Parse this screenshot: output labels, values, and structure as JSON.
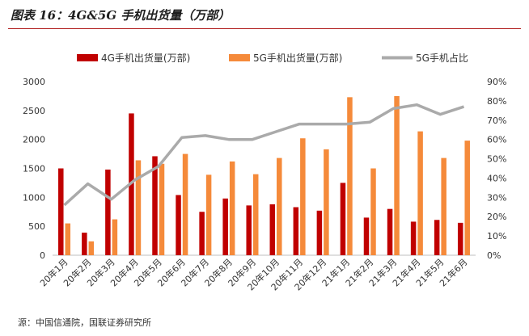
{
  "title": "图表 16：4G&5G 手机出货量（万部）",
  "source": "源：中国信通院，国联证券研究所",
  "colors": {
    "series_4g": "#c00000",
    "series_5g": "#f58a3a",
    "series_ratio": "#aaaaaa",
    "title_rule": "#b01c1c"
  },
  "chart_data": {
    "type": "bar",
    "categories": [
      "20年1月",
      "20年2月",
      "20年3月",
      "20年4月",
      "20年5月",
      "20年6月",
      "20年7月",
      "20年8月",
      "20年9月",
      "20年10月",
      "20年11月",
      "20年12月",
      "21年1月",
      "21年2月",
      "21年3月",
      "21年4月",
      "21年5月",
      "21年6月"
    ],
    "series": [
      {
        "name": "4G手机出货量(万部)",
        "type": "bar",
        "axis": "left",
        "values": [
          1500,
          390,
          1480,
          2450,
          1710,
          1040,
          750,
          980,
          860,
          880,
          830,
          770,
          1250,
          650,
          800,
          580,
          610,
          560
        ]
      },
      {
        "name": "5G手机出货量(万部)",
        "type": "bar",
        "axis": "left",
        "values": [
          550,
          240,
          620,
          1640,
          1580,
          1750,
          1390,
          1620,
          1400,
          1680,
          2020,
          1830,
          2730,
          1500,
          2750,
          2140,
          1680,
          1980
        ]
      },
      {
        "name": "5G手机占比",
        "type": "line",
        "axis": "right",
        "values": [
          26,
          37,
          29,
          39,
          46,
          61,
          62,
          60,
          60,
          64,
          68,
          68,
          68,
          69,
          76,
          78,
          73,
          77
        ]
      }
    ],
    "y_left": {
      "min": 0,
      "max": 3000,
      "ticks": [
        "0",
        "500",
        "1000",
        "1500",
        "2000",
        "2500",
        "3000"
      ]
    },
    "y_right": {
      "min": 0,
      "max": 90,
      "ticks": [
        "0%",
        "10%",
        "20%",
        "30%",
        "40%",
        "50%",
        "60%",
        "70%",
        "80%",
        "90%"
      ]
    },
    "grid": false,
    "legend_position": "top"
  }
}
